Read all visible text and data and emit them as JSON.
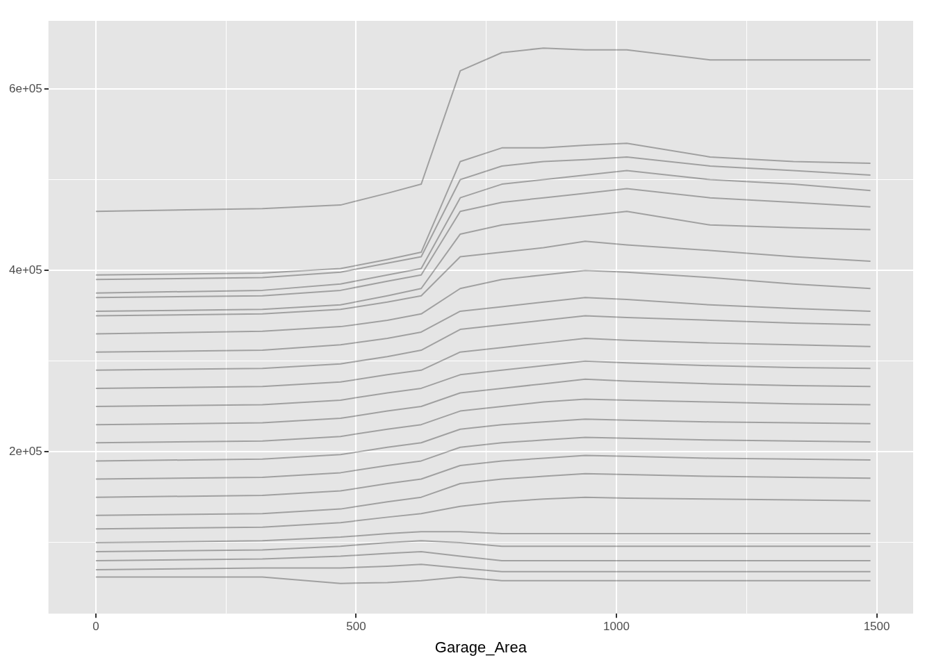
{
  "chart_data": {
    "type": "line",
    "xlabel": "Garage_Area",
    "x": [
      0,
      320,
      470,
      560,
      625,
      700,
      780,
      860,
      940,
      1020,
      1180,
      1340,
      1488
    ],
    "xlim": [
      -91,
      1570
    ],
    "ylim": [
      21700,
      675000
    ],
    "xticks": [
      0,
      {
        "value": 250,
        "label": null
      },
      500,
      {
        "value": 750,
        "label": null
      },
      1000,
      {
        "value": 1250,
        "label": null
      },
      1500
    ],
    "yticks": [
      {
        "value": 100000,
        "label": null
      },
      {
        "value": 200000,
        "label": "2e+05"
      },
      {
        "value": 300000,
        "label": null
      },
      {
        "value": 400000,
        "label": "4e+05"
      },
      {
        "value": 500000,
        "label": null
      },
      {
        "value": 600000,
        "label": "6e+05"
      }
    ],
    "grid": true,
    "legend": false,
    "marker": "none",
    "line_style": "solid",
    "series": [
      {
        "color": "#000000",
        "values": [
          465000,
          468000,
          472000,
          485000,
          495000,
          620000,
          640000,
          645000,
          643000,
          643000,
          632000,
          632000,
          632000
        ]
      },
      {
        "color": "#000000",
        "values": [
          395000,
          397000,
          402000,
          412000,
          420000,
          520000,
          535000,
          535000,
          538000,
          540000,
          525000,
          520000,
          518000
        ]
      },
      {
        "color": "#000000",
        "values": [
          390000,
          392000,
          398000,
          408000,
          415000,
          500000,
          515000,
          520000,
          522000,
          525000,
          515000,
          510000,
          505000
        ]
      },
      {
        "color": "#000000",
        "values": [
          375000,
          378000,
          385000,
          395000,
          402000,
          480000,
          495000,
          500000,
          505000,
          510000,
          500000,
          495000,
          488000
        ]
      },
      {
        "color": "#000000",
        "values": [
          370000,
          372000,
          378000,
          388000,
          395000,
          465000,
          475000,
          480000,
          485000,
          490000,
          480000,
          475000,
          470000
        ]
      },
      {
        "color": "#000000",
        "values": [
          355000,
          357000,
          362000,
          372000,
          380000,
          440000,
          450000,
          455000,
          460000,
          465000,
          450000,
          447000,
          445000
        ]
      },
      {
        "color": "#000000",
        "values": [
          350000,
          352000,
          357000,
          365000,
          372000,
          415000,
          420000,
          425000,
          432000,
          428000,
          422000,
          415000,
          410000
        ]
      },
      {
        "color": "#000000",
        "values": [
          330000,
          333000,
          338000,
          345000,
          352000,
          380000,
          390000,
          395000,
          400000,
          398000,
          392000,
          385000,
          380000
        ]
      },
      {
        "color": "#000000",
        "values": [
          310000,
          312000,
          318000,
          325000,
          332000,
          355000,
          360000,
          365000,
          370000,
          368000,
          362000,
          358000,
          355000
        ]
      },
      {
        "color": "#000000",
        "values": [
          290000,
          292000,
          297000,
          305000,
          312000,
          335000,
          340000,
          345000,
          350000,
          348000,
          345000,
          342000,
          340000
        ]
      },
      {
        "color": "#000000",
        "values": [
          270000,
          272000,
          277000,
          285000,
          290000,
          310000,
          315000,
          320000,
          325000,
          323000,
          320000,
          318000,
          316000
        ]
      },
      {
        "color": "#000000",
        "values": [
          250000,
          252000,
          257000,
          265000,
          270000,
          285000,
          290000,
          295000,
          300000,
          298000,
          295000,
          293000,
          292000
        ]
      },
      {
        "color": "#000000",
        "values": [
          230000,
          232000,
          237000,
          245000,
          250000,
          265000,
          270000,
          275000,
          280000,
          278000,
          275000,
          273000,
          272000
        ]
      },
      {
        "color": "#000000",
        "values": [
          210000,
          212000,
          217000,
          225000,
          230000,
          245000,
          250000,
          255000,
          258000,
          257000,
          255000,
          253000,
          252000
        ]
      },
      {
        "color": "#000000",
        "values": [
          190000,
          192000,
          197000,
          205000,
          210000,
          225000,
          230000,
          233000,
          236000,
          235000,
          233000,
          232000,
          231000
        ]
      },
      {
        "color": "#000000",
        "values": [
          170000,
          172000,
          177000,
          185000,
          190000,
          205000,
          210000,
          213000,
          216000,
          215000,
          213000,
          212000,
          211000
        ]
      },
      {
        "color": "#000000",
        "values": [
          150000,
          152000,
          157000,
          165000,
          170000,
          185000,
          190000,
          193000,
          196000,
          195000,
          193000,
          192000,
          191000
        ]
      },
      {
        "color": "#000000",
        "values": [
          130000,
          132000,
          137000,
          145000,
          150000,
          165000,
          170000,
          173000,
          176000,
          175000,
          173000,
          172000,
          171000
        ]
      },
      {
        "color": "#000000",
        "values": [
          115000,
          117000,
          122000,
          128000,
          132000,
          140000,
          145000,
          148000,
          150000,
          149000,
          148000,
          147000,
          146000
        ]
      },
      {
        "color": "#000000",
        "values": [
          100000,
          102000,
          106000,
          110000,
          112000,
          112000,
          110000,
          110000,
          110000,
          110000,
          110000,
          110000,
          110000
        ]
      },
      {
        "color": "#000000",
        "values": [
          90000,
          92000,
          96000,
          100000,
          102000,
          100000,
          96000,
          96000,
          96000,
          96000,
          96000,
          96000,
          96000
        ]
      },
      {
        "color": "#000000",
        "values": [
          80000,
          82000,
          85000,
          88000,
          90000,
          85000,
          80000,
          80000,
          80000,
          80000,
          80000,
          80000,
          80000
        ]
      },
      {
        "color": "#000000",
        "values": [
          70000,
          72000,
          72000,
          74000,
          76000,
          72000,
          68000,
          68000,
          68000,
          68000,
          68000,
          68000,
          68000
        ]
      },
      {
        "color": "#000000",
        "values": [
          62000,
          62000,
          55000,
          56000,
          58000,
          62000,
          58000,
          58000,
          58000,
          58000,
          58000,
          58000,
          58000
        ]
      }
    ]
  }
}
